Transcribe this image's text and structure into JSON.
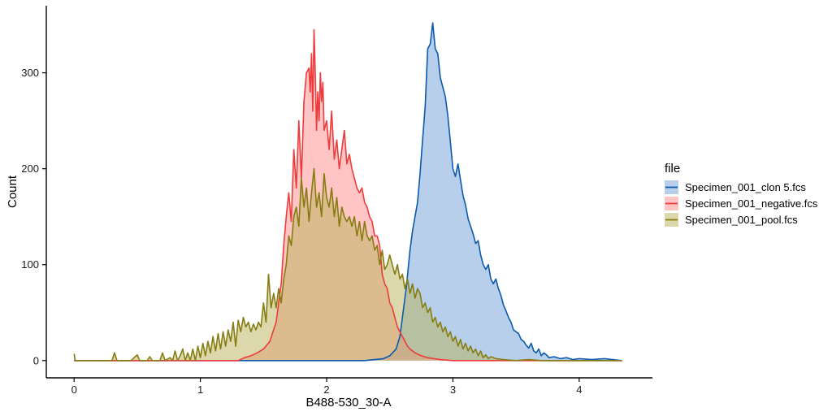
{
  "chart_data": {
    "type": "area",
    "xlabel": "B488-530_30-A",
    "ylabel": "Count",
    "xlim": [
      -0.22,
      4.58
    ],
    "ylim": [
      -18,
      370
    ],
    "x_ticks": [
      0,
      1,
      2,
      3,
      4
    ],
    "x_tick_labels": [
      "0",
      "1",
      "2",
      "3",
      "4"
    ],
    "y_ticks": [
      0,
      100,
      200,
      300
    ],
    "y_tick_labels": [
      "0",
      "100",
      "200",
      "300"
    ],
    "grid": false,
    "legend": {
      "title": "file",
      "position": "right"
    },
    "series": [
      {
        "name": "Specimen_001_clon 5.fcs",
        "line_color": "#0b5aad",
        "fill_color": "#6f9fd8",
        "fill_opacity": 0.5,
        "points": [
          [
            0.0,
            0
          ],
          [
            0.5,
            0
          ],
          [
            1.0,
            0
          ],
          [
            1.5,
            0
          ],
          [
            2.0,
            0
          ],
          [
            2.3,
            0
          ],
          [
            2.45,
            2
          ],
          [
            2.5,
            5
          ],
          [
            2.55,
            12
          ],
          [
            2.58,
            25
          ],
          [
            2.6,
            45
          ],
          [
            2.63,
            75
          ],
          [
            2.66,
            115
          ],
          [
            2.68,
            135
          ],
          [
            2.7,
            150
          ],
          [
            2.72,
            165
          ],
          [
            2.74,
            195
          ],
          [
            2.76,
            230
          ],
          [
            2.78,
            265
          ],
          [
            2.8,
            325
          ],
          [
            2.82,
            330
          ],
          [
            2.84,
            352
          ],
          [
            2.86,
            325
          ],
          [
            2.88,
            320
          ],
          [
            2.9,
            295
          ],
          [
            2.92,
            285
          ],
          [
            2.94,
            275
          ],
          [
            2.96,
            255
          ],
          [
            2.98,
            228
          ],
          [
            3.0,
            200
          ],
          [
            3.02,
            192
          ],
          [
            3.04,
            205
          ],
          [
            3.06,
            188
          ],
          [
            3.08,
            172
          ],
          [
            3.1,
            162
          ],
          [
            3.12,
            148
          ],
          [
            3.14,
            140
          ],
          [
            3.16,
            132
          ],
          [
            3.18,
            122
          ],
          [
            3.2,
            125
          ],
          [
            3.22,
            110
          ],
          [
            3.24,
            100
          ],
          [
            3.26,
            95
          ],
          [
            3.28,
            100
          ],
          [
            3.3,
            85
          ],
          [
            3.32,
            80
          ],
          [
            3.34,
            85
          ],
          [
            3.36,
            75
          ],
          [
            3.38,
            68
          ],
          [
            3.4,
            58
          ],
          [
            3.42,
            52
          ],
          [
            3.44,
            45
          ],
          [
            3.46,
            40
          ],
          [
            3.48,
            32
          ],
          [
            3.5,
            30
          ],
          [
            3.52,
            28
          ],
          [
            3.54,
            22
          ],
          [
            3.56,
            20
          ],
          [
            3.58,
            16
          ],
          [
            3.6,
            13
          ],
          [
            3.62,
            18
          ],
          [
            3.64,
            10
          ],
          [
            3.66,
            8
          ],
          [
            3.68,
            12
          ],
          [
            3.7,
            5
          ],
          [
            3.72,
            8
          ],
          [
            3.74,
            6
          ],
          [
            3.76,
            3
          ],
          [
            3.8,
            4
          ],
          [
            3.85,
            2
          ],
          [
            3.9,
            3
          ],
          [
            3.95,
            1
          ],
          [
            4.0,
            2
          ],
          [
            4.1,
            1
          ],
          [
            4.2,
            2
          ],
          [
            4.34,
            0
          ]
        ]
      },
      {
        "name": "Specimen_001_negative.fcs",
        "line_color": "#ee3b3b",
        "fill_color": "#ff8c8c",
        "fill_opacity": 0.5,
        "points": [
          [
            0.0,
            0
          ],
          [
            0.5,
            0
          ],
          [
            1.0,
            0
          ],
          [
            1.2,
            0
          ],
          [
            1.3,
            0
          ],
          [
            1.35,
            3
          ],
          [
            1.4,
            5
          ],
          [
            1.45,
            8
          ],
          [
            1.5,
            12
          ],
          [
            1.55,
            20
          ],
          [
            1.6,
            40
          ],
          [
            1.62,
            60
          ],
          [
            1.64,
            80
          ],
          [
            1.66,
            120
          ],
          [
            1.68,
            150
          ],
          [
            1.7,
            175
          ],
          [
            1.72,
            145
          ],
          [
            1.74,
            220
          ],
          [
            1.76,
            180
          ],
          [
            1.78,
            250
          ],
          [
            1.8,
            190
          ],
          [
            1.82,
            270
          ],
          [
            1.84,
            300
          ],
          [
            1.86,
            305
          ],
          [
            1.87,
            280
          ],
          [
            1.88,
            320
          ],
          [
            1.89,
            260
          ],
          [
            1.9,
            345
          ],
          [
            1.91,
            300
          ],
          [
            1.92,
            240
          ],
          [
            1.93,
            280
          ],
          [
            1.94,
            250
          ],
          [
            1.95,
            300
          ],
          [
            1.96,
            270
          ],
          [
            1.97,
            290
          ],
          [
            1.98,
            240
          ],
          [
            2.0,
            250
          ],
          [
            2.02,
            220
          ],
          [
            2.04,
            260
          ],
          [
            2.06,
            210
          ],
          [
            2.08,
            230
          ],
          [
            2.1,
            200
          ],
          [
            2.12,
            220
          ],
          [
            2.14,
            240
          ],
          [
            2.16,
            205
          ],
          [
            2.18,
            215
          ],
          [
            2.2,
            200
          ],
          [
            2.22,
            190
          ],
          [
            2.24,
            180
          ],
          [
            2.26,
            175
          ],
          [
            2.28,
            180
          ],
          [
            2.3,
            165
          ],
          [
            2.32,
            160
          ],
          [
            2.34,
            150
          ],
          [
            2.36,
            145
          ],
          [
            2.38,
            130
          ],
          [
            2.4,
            130
          ],
          [
            2.42,
            120
          ],
          [
            2.44,
            90
          ],
          [
            2.46,
            80
          ],
          [
            2.48,
            75
          ],
          [
            2.5,
            60
          ],
          [
            2.52,
            55
          ],
          [
            2.54,
            45
          ],
          [
            2.56,
            35
          ],
          [
            2.58,
            30
          ],
          [
            2.6,
            25
          ],
          [
            2.62,
            20
          ],
          [
            2.64,
            15
          ],
          [
            2.66,
            12
          ],
          [
            2.7,
            8
          ],
          [
            2.75,
            5
          ],
          [
            2.8,
            3
          ],
          [
            2.9,
            1
          ],
          [
            3.0,
            0
          ],
          [
            4.34,
            0
          ]
        ]
      },
      {
        "name": "Specimen_001_pool.fcs",
        "line_color": "#857d12",
        "fill_color": "#b9b25a",
        "fill_opacity": 0.5,
        "points": [
          [
            0.0,
            7
          ],
          [
            0.01,
            0
          ],
          [
            0.1,
            0
          ],
          [
            0.2,
            0
          ],
          [
            0.3,
            0
          ],
          [
            0.32,
            8
          ],
          [
            0.34,
            0
          ],
          [
            0.45,
            0
          ],
          [
            0.5,
            6
          ],
          [
            0.52,
            0
          ],
          [
            0.58,
            0
          ],
          [
            0.6,
            4
          ],
          [
            0.62,
            0
          ],
          [
            0.68,
            0
          ],
          [
            0.7,
            8
          ],
          [
            0.72,
            0
          ],
          [
            0.76,
            3
          ],
          [
            0.78,
            0
          ],
          [
            0.8,
            10
          ],
          [
            0.82,
            0
          ],
          [
            0.84,
            5
          ],
          [
            0.86,
            12
          ],
          [
            0.88,
            0
          ],
          [
            0.9,
            8
          ],
          [
            0.92,
            0
          ],
          [
            0.94,
            12
          ],
          [
            0.96,
            0
          ],
          [
            0.98,
            15
          ],
          [
            1.0,
            3
          ],
          [
            1.02,
            18
          ],
          [
            1.04,
            5
          ],
          [
            1.06,
            20
          ],
          [
            1.08,
            8
          ],
          [
            1.1,
            25
          ],
          [
            1.12,
            10
          ],
          [
            1.14,
            28
          ],
          [
            1.16,
            12
          ],
          [
            1.18,
            30
          ],
          [
            1.2,
            15
          ],
          [
            1.22,
            32
          ],
          [
            1.24,
            20
          ],
          [
            1.26,
            40
          ],
          [
            1.28,
            15
          ],
          [
            1.3,
            42
          ],
          [
            1.32,
            30
          ],
          [
            1.34,
            45
          ],
          [
            1.36,
            35
          ],
          [
            1.38,
            40
          ],
          [
            1.4,
            30
          ],
          [
            1.42,
            38
          ],
          [
            1.44,
            32
          ],
          [
            1.46,
            40
          ],
          [
            1.48,
            35
          ],
          [
            1.5,
            60
          ],
          [
            1.52,
            40
          ],
          [
            1.54,
            90
          ],
          [
            1.56,
            55
          ],
          [
            1.58,
            70
          ],
          [
            1.6,
            55
          ],
          [
            1.62,
            75
          ],
          [
            1.64,
            60
          ],
          [
            1.66,
            85
          ],
          [
            1.68,
            100
          ],
          [
            1.7,
            130
          ],
          [
            1.72,
            120
          ],
          [
            1.74,
            150
          ],
          [
            1.76,
            160
          ],
          [
            1.78,
            140
          ],
          [
            1.8,
            190
          ],
          [
            1.82,
            160
          ],
          [
            1.84,
            180
          ],
          [
            1.86,
            145
          ],
          [
            1.88,
            175
          ],
          [
            1.9,
            200
          ],
          [
            1.92,
            160
          ],
          [
            1.94,
            175
          ],
          [
            1.96,
            150
          ],
          [
            1.98,
            195
          ],
          [
            2.0,
            170
          ],
          [
            2.02,
            160
          ],
          [
            2.04,
            180
          ],
          [
            2.06,
            150
          ],
          [
            2.08,
            170
          ],
          [
            2.1,
            140
          ],
          [
            2.12,
            160
          ],
          [
            2.14,
            150
          ],
          [
            2.16,
            145
          ],
          [
            2.18,
            150
          ],
          [
            2.2,
            140
          ],
          [
            2.22,
            150
          ],
          [
            2.24,
            130
          ],
          [
            2.26,
            145
          ],
          [
            2.28,
            125
          ],
          [
            2.3,
            145
          ],
          [
            2.32,
            130
          ],
          [
            2.34,
            125
          ],
          [
            2.36,
            130
          ],
          [
            2.38,
            115
          ],
          [
            2.4,
            120
          ],
          [
            2.42,
            100
          ],
          [
            2.44,
            115
          ],
          [
            2.46,
            95
          ],
          [
            2.48,
            100
          ],
          [
            2.5,
            110
          ],
          [
            2.52,
            100
          ],
          [
            2.54,
            90
          ],
          [
            2.56,
            100
          ],
          [
            2.58,
            85
          ],
          [
            2.6,
            90
          ],
          [
            2.62,
            75
          ],
          [
            2.64,
            85
          ],
          [
            2.66,
            70
          ],
          [
            2.68,
            80
          ],
          [
            2.7,
            65
          ],
          [
            2.72,
            75
          ],
          [
            2.74,
            70
          ],
          [
            2.76,
            55
          ],
          [
            2.78,
            60
          ],
          [
            2.8,
            50
          ],
          [
            2.82,
            55
          ],
          [
            2.84,
            40
          ],
          [
            2.86,
            45
          ],
          [
            2.88,
            35
          ],
          [
            2.9,
            40
          ],
          [
            2.92,
            30
          ],
          [
            2.94,
            35
          ],
          [
            2.96,
            25
          ],
          [
            2.98,
            30
          ],
          [
            3.0,
            20
          ],
          [
            3.02,
            25
          ],
          [
            3.04,
            15
          ],
          [
            3.06,
            22
          ],
          [
            3.08,
            12
          ],
          [
            3.1,
            18
          ],
          [
            3.12,
            10
          ],
          [
            3.14,
            15
          ],
          [
            3.16,
            8
          ],
          [
            3.18,
            12
          ],
          [
            3.2,
            5
          ],
          [
            3.22,
            10
          ],
          [
            3.24,
            3
          ],
          [
            3.26,
            6
          ],
          [
            3.28,
            2
          ],
          [
            3.3,
            4
          ],
          [
            3.34,
            2
          ],
          [
            3.4,
            1
          ],
          [
            3.5,
            0
          ],
          [
            3.6,
            1
          ],
          [
            3.7,
            0
          ],
          [
            4.34,
            0
          ]
        ]
      }
    ]
  }
}
